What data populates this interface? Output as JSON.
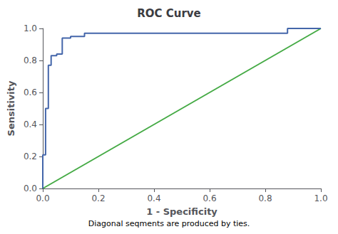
{
  "chart_data": {
    "type": "line",
    "title": "ROC Curve",
    "xlabel": "1 - Specificity",
    "ylabel": "Sensitivity",
    "footnote": "Diagonal seqments are produced by ties.",
    "xlim": [
      0.0,
      1.0
    ],
    "ylim": [
      0.0,
      1.0
    ],
    "xticks": [
      {
        "value": 0.0,
        "label": "0.0"
      },
      0.2,
      0.4,
      0.6,
      0.8,
      {
        "value": 1.0,
        "label": "1.0"
      }
    ],
    "yticks": [
      {
        "value": 0.0,
        "label": "0.0"
      },
      0.2,
      0.4,
      0.6,
      0.8,
      {
        "value": 1.0,
        "label": "1.0"
      }
    ],
    "grid": false,
    "series": [
      {
        "color": "#44aa44",
        "x": [
          0.0,
          1.0
        ],
        "values": [
          0.0,
          1.0
        ]
      },
      {
        "color": "#4466aa",
        "x": [
          0.0,
          0.0,
          0.01,
          0.01,
          0.02,
          0.02,
          0.03,
          0.03,
          0.05,
          0.05,
          0.07,
          0.07,
          0.1,
          0.1,
          0.15,
          0.15,
          0.18,
          0.18,
          0.2,
          0.2,
          0.88,
          0.88,
          1.0
        ],
        "values": [
          0.0,
          0.21,
          0.21,
          0.5,
          0.5,
          0.77,
          0.77,
          0.83,
          0.83,
          0.84,
          0.84,
          0.94,
          0.94,
          0.95,
          0.95,
          0.97,
          0.97,
          0.97,
          0.97,
          0.97,
          0.97,
          1.0,
          1.0
        ]
      }
    ]
  }
}
